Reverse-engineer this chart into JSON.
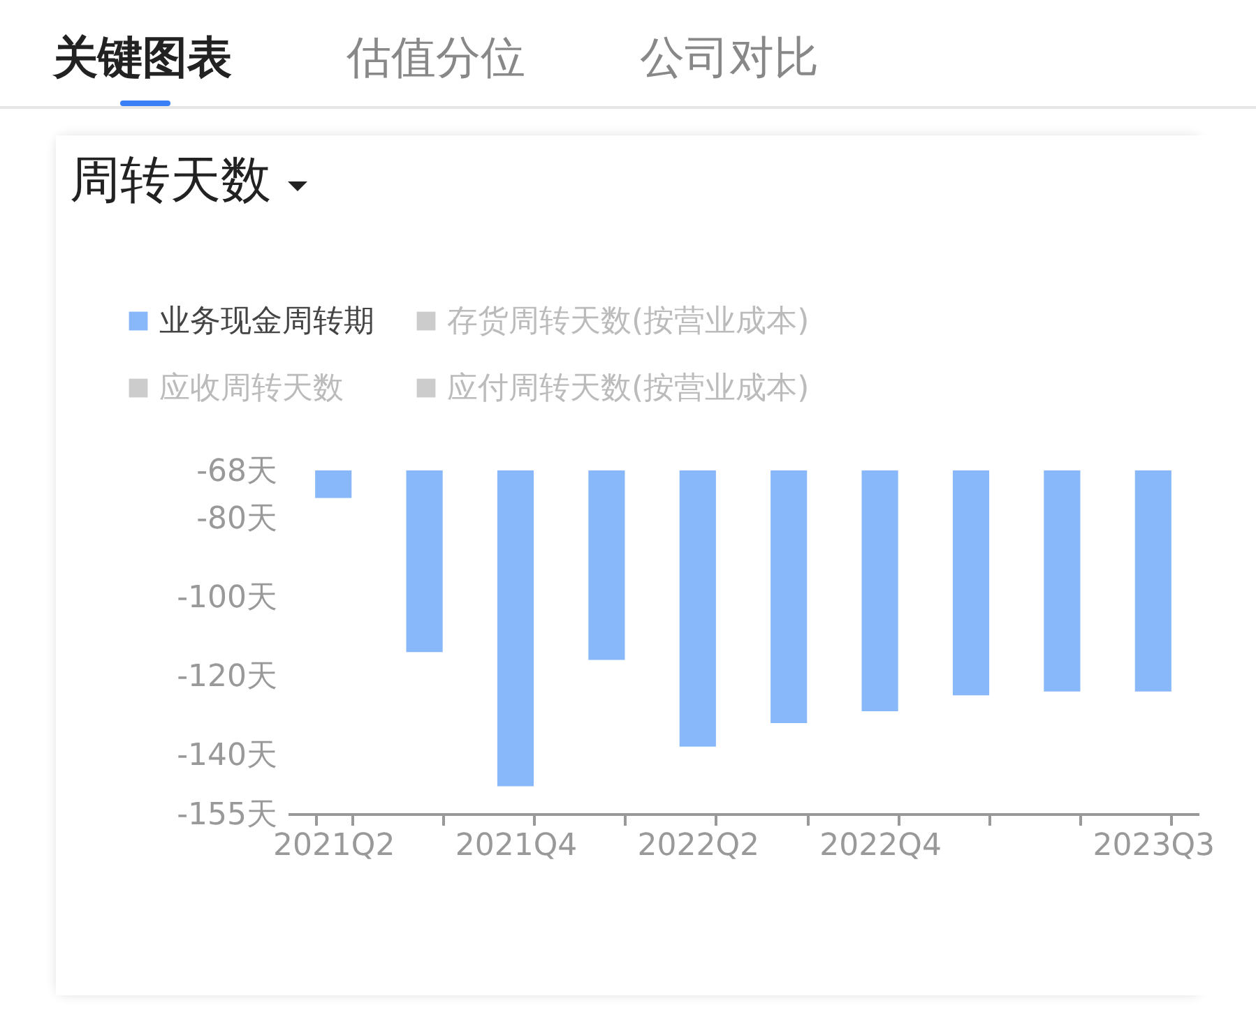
{
  "chart_data": {
    "type": "bar",
    "title": "周转天数",
    "annotations": [
      "关键图表",
      "估值分位",
      "公司对比"
    ],
    "categories": [
      "2021Q2",
      null,
      "2021Q4",
      null,
      "2022Q2",
      null,
      "2022Q4",
      null,
      null,
      "2023Q3"
    ],
    "series": [
      {
        "name": "业务现金周转期",
        "color": "#88b8fa",
        "values": [
          -75,
          -114,
          -148,
          -116,
          -138,
          -132,
          -129,
          -125,
          -124,
          -124
        ]
      },
      {
        "name": "存货周转天数(按营业成本)",
        "color": "#cccccc",
        "values": [
          null,
          null,
          null,
          null,
          null,
          null,
          null,
          null,
          null,
          null
        ]
      },
      {
        "name": "应收周转天数",
        "color": "#cccccc",
        "values": [
          null,
          null,
          null,
          null,
          null,
          null,
          null,
          null,
          null,
          null
        ]
      },
      {
        "name": "应付周转天数(按营业成本)",
        "color": "#cccccc",
        "values": [
          null,
          null,
          null,
          null,
          null,
          null,
          null,
          null,
          null,
          null
        ]
      }
    ],
    "ylim": [
      -155,
      -68
    ],
    "yticks": [
      {
        "value": -68,
        "label": "-68天"
      },
      {
        "value": -80,
        "label": "-80天"
      },
      {
        "value": -100,
        "label": "-100天"
      },
      {
        "value": -120,
        "label": "-120天"
      },
      {
        "value": -140,
        "label": "-140天"
      },
      {
        "value": -155,
        "label": "-155天"
      }
    ],
    "grid": false,
    "legend": "top left"
  }
}
